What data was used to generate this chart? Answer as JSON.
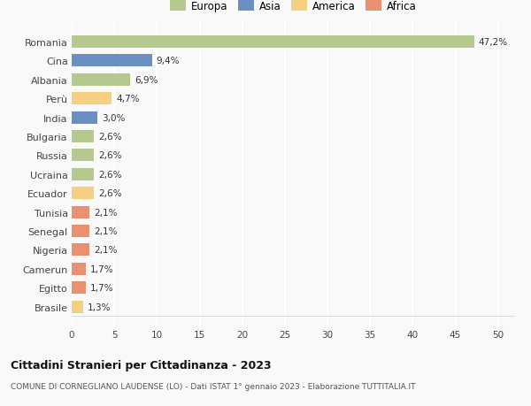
{
  "countries": [
    "Romania",
    "Cina",
    "Albania",
    "Perù",
    "India",
    "Bulgaria",
    "Russia",
    "Ucraina",
    "Ecuador",
    "Tunisia",
    "Senegal",
    "Nigeria",
    "Camerun",
    "Egitto",
    "Brasile"
  ],
  "values": [
    47.2,
    9.4,
    6.9,
    4.7,
    3.0,
    2.6,
    2.6,
    2.6,
    2.6,
    2.1,
    2.1,
    2.1,
    1.7,
    1.7,
    1.3
  ],
  "labels": [
    "47,2%",
    "9,4%",
    "6,9%",
    "4,7%",
    "3,0%",
    "2,6%",
    "2,6%",
    "2,6%",
    "2,6%",
    "2,1%",
    "2,1%",
    "2,1%",
    "1,7%",
    "1,7%",
    "1,3%"
  ],
  "colors": [
    "#b5c98e",
    "#6a8fc2",
    "#b5c98e",
    "#f5d080",
    "#6a8fc2",
    "#b5c98e",
    "#b5c98e",
    "#b5c98e",
    "#f5d080",
    "#e89070",
    "#e89070",
    "#e89070",
    "#e89070",
    "#e89070",
    "#f5d080"
  ],
  "legend_labels": [
    "Europa",
    "Asia",
    "America",
    "Africa"
  ],
  "legend_colors": [
    "#b5c98e",
    "#6a8fc2",
    "#f5d080",
    "#e89070"
  ],
  "title": "Cittadini Stranieri per Cittadinanza - 2023",
  "subtitle": "COMUNE DI CORNEGLIANO LAUDENSE (LO) - Dati ISTAT 1° gennaio 2023 - Elaborazione TUTTITALIA.IT",
  "xlim": [
    0,
    52
  ],
  "xticks": [
    0,
    5,
    10,
    15,
    20,
    25,
    30,
    35,
    40,
    45,
    50
  ],
  "background_color": "#f9f9f9",
  "grid_color": "#ffffff",
  "bar_height": 0.65,
  "title_fontsize": 9,
  "subtitle_fontsize": 6.5,
  "label_fontsize": 7.5,
  "ytick_fontsize": 8,
  "xtick_fontsize": 7.5,
  "legend_fontsize": 8.5
}
